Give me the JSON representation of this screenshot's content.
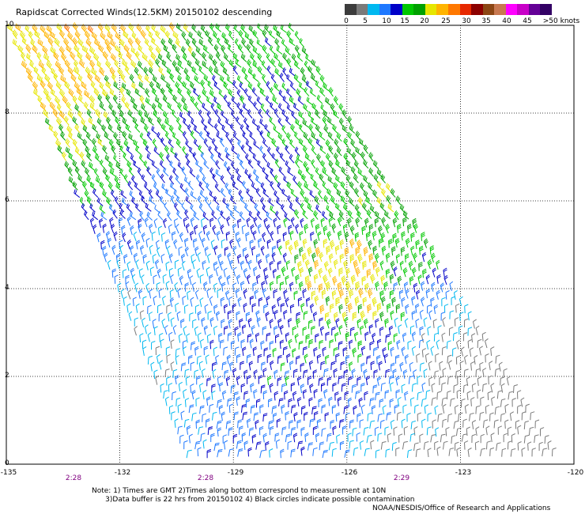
{
  "title": "Rapidscat Corrected Winds(12.5KM) 20150102 descending",
  "legend": {
    "labels": [
      "0",
      "5",
      "10",
      "15",
      "20",
      "25",
      "30",
      "35",
      "40",
      "45",
      ">50 knots"
    ],
    "colors": [
      "#3c3c3c",
      "#7a7a7a",
      "#00b8f0",
      "#1e78ff",
      "#0000c8",
      "#00c800",
      "#00a000",
      "#e6e600",
      "#ffb400",
      "#ff7800",
      "#e62800",
      "#8c0000",
      "#8c4614",
      "#c87850",
      "#ff00ff",
      "#c800c8",
      "#640096",
      "#320064"
    ]
  },
  "y_ticks": [
    "0",
    "2",
    "4",
    "6",
    "8",
    "10"
  ],
  "x_ticks": [
    "-135",
    "-132",
    "-129",
    "-126",
    "-123",
    "-120"
  ],
  "time_ticks": [
    "2:28",
    "2:28",
    "2:29"
  ],
  "notes": {
    "line1": "Note: 1) Times are GMT 2)Times along bottom correspond to measurement at 10N",
    "line2": "      3)Data buffer is 22 hrs from 20150102 4) Black circles indicate possible contamination"
  },
  "credit": "NOAA/NESDIS/Office of Research and Applications",
  "swath_map": {
    "lon_range": [
      -135,
      -120
    ],
    "lat_range": [
      0,
      10
    ],
    "swath_corners_lon_lat": [
      [
        -135,
        10
      ],
      [
        -127.4,
        10
      ],
      [
        -120.3,
        0
      ],
      [
        -130.3,
        0
      ]
    ],
    "speed_bins_knots": [
      0,
      5,
      10,
      15,
      20,
      25,
      30,
      35,
      40,
      45,
      50
    ]
  }
}
